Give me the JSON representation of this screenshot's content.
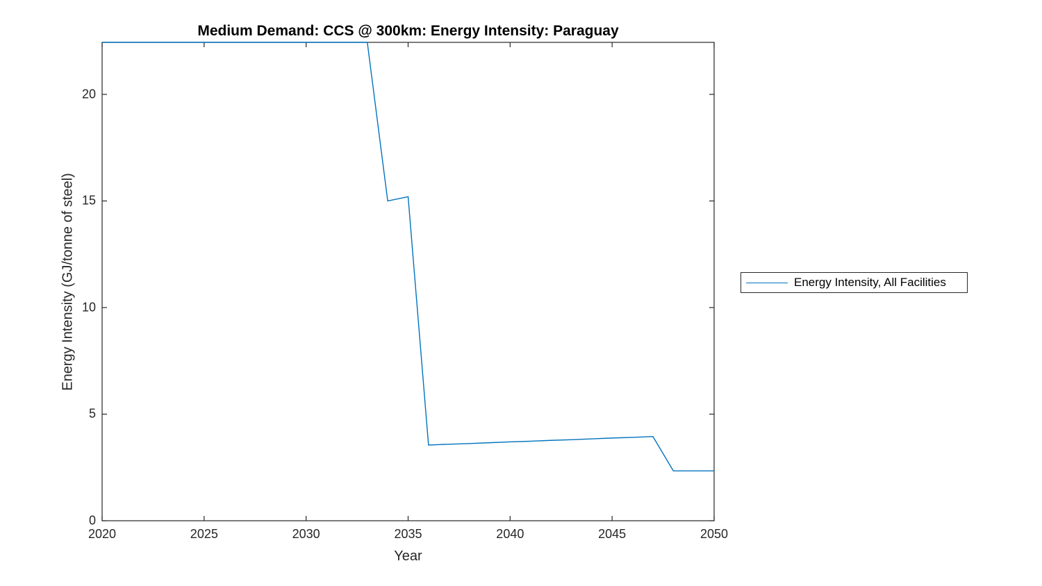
{
  "chart_data": {
    "type": "line",
    "title": "Medium Demand: CCS @ 300km: Energy Intensity: Paraguay",
    "xlabel": "Year",
    "ylabel": "Energy Intensity (GJ/tonne of steel)",
    "xlim": [
      2020,
      2050
    ],
    "ylim": [
      0,
      22.44
    ],
    "xticks": [
      2020,
      2025,
      2030,
      2035,
      2040,
      2045,
      2050
    ],
    "yticks": [
      0,
      5,
      10,
      15,
      20
    ],
    "grid": false,
    "legend_position": "right-outside",
    "legend_entries": [
      "Energy Intensity, All Facilities"
    ],
    "series": [
      {
        "name": "Energy Intensity, All Facilities",
        "color": "#0072BD",
        "x": [
          2020,
          2021,
          2022,
          2023,
          2024,
          2025,
          2026,
          2027,
          2028,
          2029,
          2030,
          2031,
          2032,
          2033,
          2034,
          2035,
          2036,
          2037,
          2038,
          2039,
          2040,
          2041,
          2042,
          2043,
          2044,
          2045,
          2046,
          2047,
          2048,
          2049,
          2050
        ],
        "y": [
          22.44,
          22.44,
          22.44,
          22.44,
          22.44,
          22.44,
          22.44,
          22.44,
          22.44,
          22.44,
          22.44,
          22.44,
          22.44,
          22.44,
          15.0,
          15.2,
          3.55,
          3.59,
          3.62,
          3.66,
          3.7,
          3.73,
          3.77,
          3.8,
          3.84,
          3.88,
          3.91,
          3.95,
          2.34,
          2.34,
          2.34
        ]
      }
    ]
  },
  "colors": {
    "axis": "#262626",
    "line": "#0072BD",
    "title_text": "#000000",
    "background": "#ffffff"
  }
}
